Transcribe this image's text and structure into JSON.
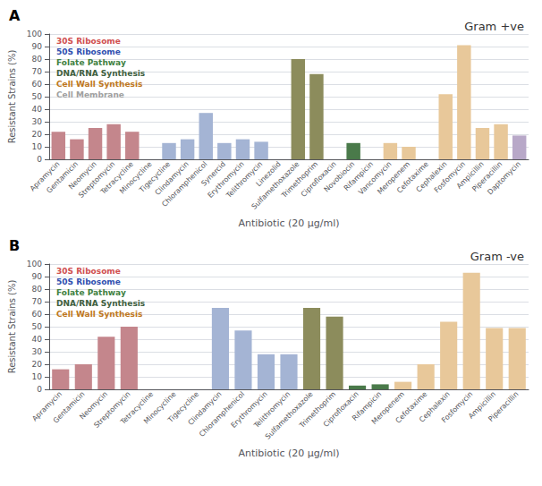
{
  "chart_data": [
    {
      "type": "bar",
      "title": "Gram +ve",
      "subtitle": "A",
      "categories": [
        "Apramycin",
        "Gentamicin",
        "Neomycin",
        "Streptomycin",
        "Tetracycline",
        "Minocycline",
        "Tigecycline",
        "Clindamycin",
        "Chloramphenicol",
        "Synercid",
        "Erythromycin",
        "Telithromycin",
        "Linezolid",
        "Sulfamethoxazole",
        "Trimethoprim",
        "Ciprofloxacin",
        "Novobiocin",
        "Rifampicin",
        "Vancomycin",
        "Meropenem",
        "Cefotaxime",
        "Cephalexin",
        "Fosfomycin",
        "Ampicillin",
        "Piperacillin",
        "Daptomycin"
      ],
      "values": [
        22,
        16,
        25,
        28,
        22,
        0,
        13,
        16,
        37,
        13,
        16,
        14,
        0,
        80,
        68,
        0,
        13,
        0,
        13,
        10,
        0,
        52,
        91,
        25,
        28,
        19
      ],
      "colors": [
        "#c4868c",
        "#c4868c",
        "#c4868c",
        "#c4868c",
        "#c4868c",
        "#c4868c",
        "#a4b4d4",
        "#a4b4d4",
        "#a4b4d4",
        "#a4b4d4",
        "#a4b4d4",
        "#a4b4d4",
        "#a4b4d4",
        "#8c8c5c",
        "#8c8c5c",
        "#4a7a4a",
        "#4a7a4a",
        "#4a7a4a",
        "#e8c89a",
        "#e8c89a",
        "#e8c89a",
        "#e8c89a",
        "#e8c89a",
        "#e8c89a",
        "#e8c89a",
        "#b8a8c8"
      ],
      "annotations": [
        {
          "text": "30S Ribosome",
          "color": "#d05050"
        },
        {
          "text": "50S Ribosome",
          "color": "#3050b0"
        },
        {
          "text": "Folate Pathway",
          "color": "#408040"
        },
        {
          "text": "DNA/RNA Synthesis",
          "color": "#406040"
        },
        {
          "text": "Cell Wall Synthesis",
          "color": "#c07820"
        },
        {
          "text": "Cell Membrane",
          "color": "#a0a0a0"
        }
      ],
      "xlabel": "Antibiotic (20 µg/ml)",
      "ylabel": "Resistant Strains (%)",
      "ylim": [
        0,
        100
      ],
      "yticks": [
        0,
        10,
        20,
        30,
        40,
        50,
        60,
        70,
        80,
        90,
        100
      ],
      "grid": true
    },
    {
      "type": "bar",
      "title": "Gram -ve",
      "subtitle": "B",
      "categories": [
        "Apramycin",
        "Gentamicin",
        "Neomycin",
        "Streptomycin",
        "Tetracycline",
        "Minocycline",
        "Tigecycline",
        "Clindamycin",
        "Chloramphenicol",
        "Erythromycin",
        "Telithromycin",
        "Sulfamethoxazole",
        "Trimethoprim",
        "Ciprofloxacin",
        "Rifampicin",
        "Meropenem",
        "Cefotaxime",
        "Cephalexin",
        "Fosfomycin",
        "Ampicillin",
        "Piperacillin"
      ],
      "values": [
        16,
        20,
        42,
        50,
        0,
        0,
        0,
        65,
        47,
        28,
        28,
        65,
        58,
        3,
        4,
        6,
        20,
        54,
        93,
        49,
        49
      ],
      "colors": [
        "#c4868c",
        "#c4868c",
        "#c4868c",
        "#c4868c",
        "#c4868c",
        "#c4868c",
        "#c4868c",
        "#a4b4d4",
        "#a4b4d4",
        "#a4b4d4",
        "#a4b4d4",
        "#8c8c5c",
        "#8c8c5c",
        "#4a7a4a",
        "#4a7a4a",
        "#e8c89a",
        "#e8c89a",
        "#e8c89a",
        "#e8c89a",
        "#e8c89a",
        "#e8c89a"
      ],
      "annotations": [
        {
          "text": "30S Ribosome",
          "color": "#d05050"
        },
        {
          "text": "50S Ribosome",
          "color": "#3050b0"
        },
        {
          "text": "Folate Pathway",
          "color": "#408040"
        },
        {
          "text": "DNA/RNA Synthesis",
          "color": "#406040"
        },
        {
          "text": "Cell Wall Synthesis",
          "color": "#c07820"
        }
      ],
      "xlabel": "Antibiotic (20 µg/ml)",
      "ylabel": "Resistant Strains (%)",
      "ylim": [
        0,
        100
      ],
      "yticks": [
        0,
        10,
        20,
        30,
        40,
        50,
        60,
        70,
        80,
        90,
        100
      ],
      "grid": true
    }
  ]
}
